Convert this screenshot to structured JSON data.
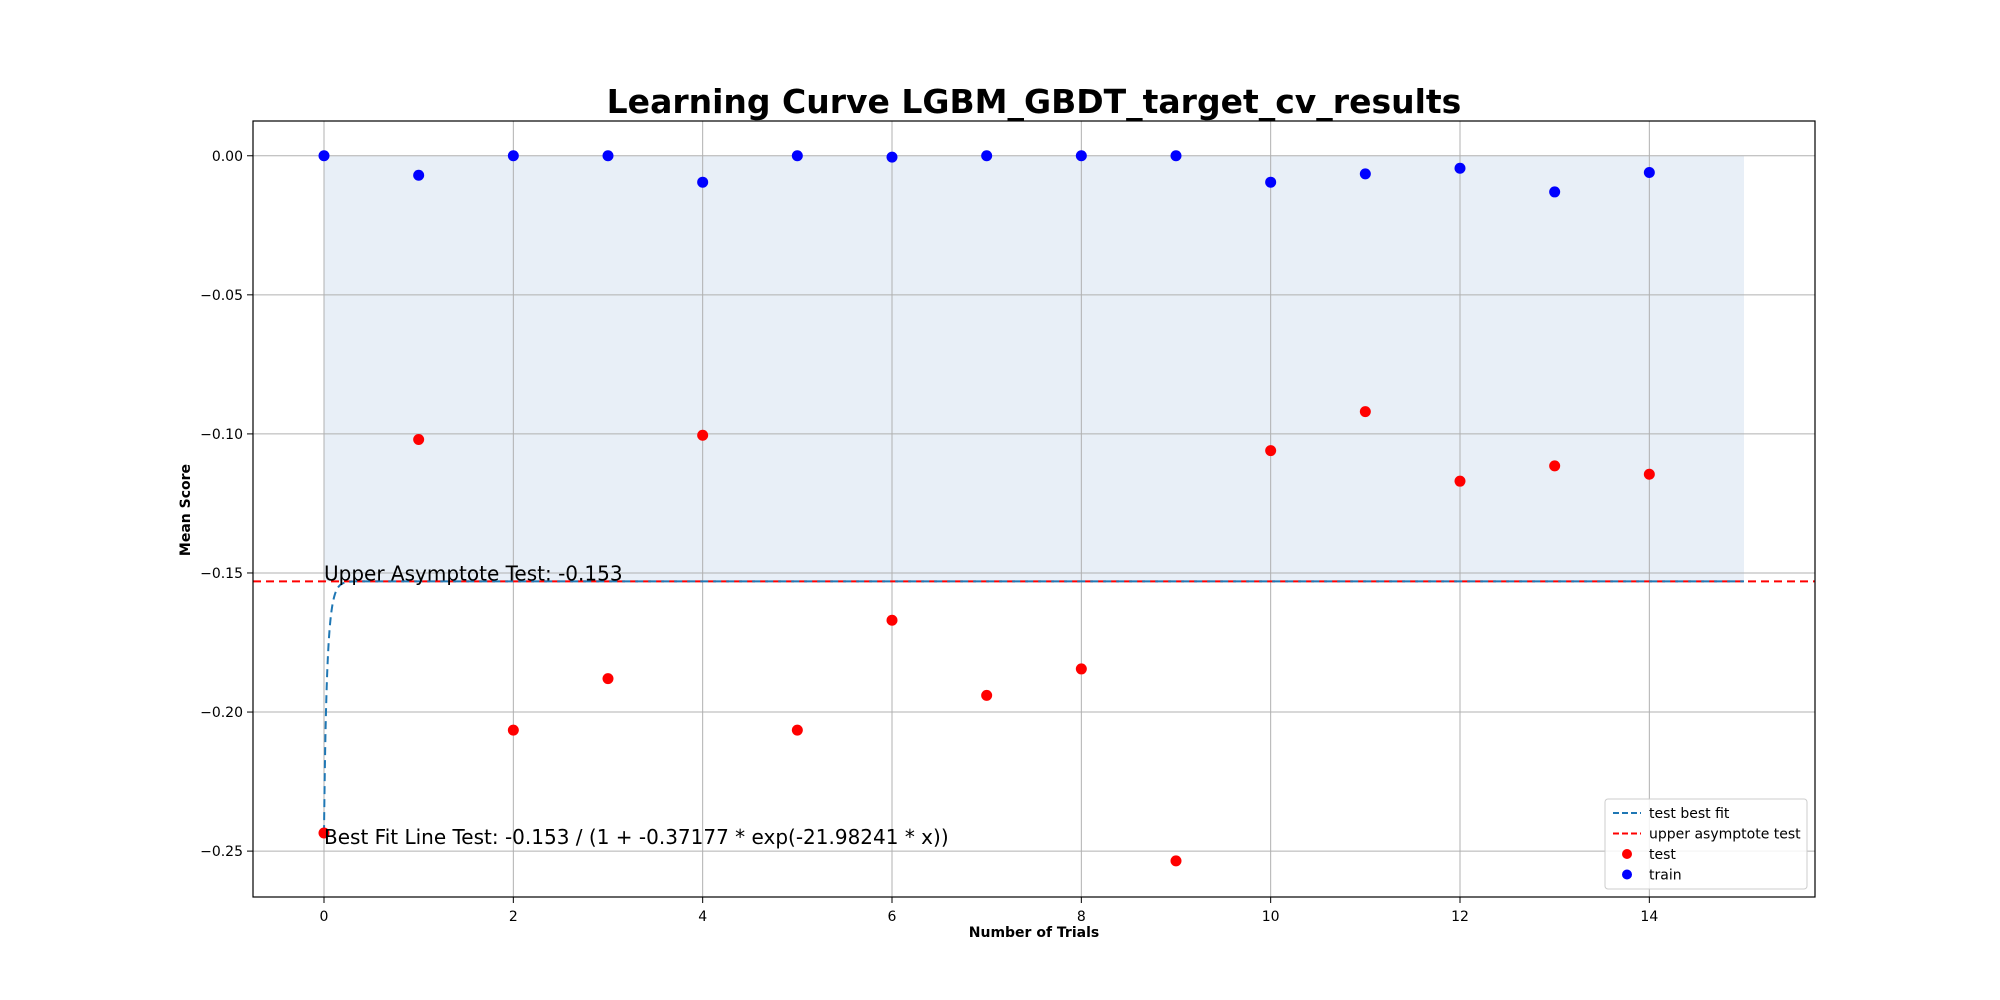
{
  "chart_data": {
    "type": "scatter",
    "title": "Learning Curve LGBM_GBDT_target_cv_results",
    "xlabel": "Number of Trials",
    "ylabel": "Mean Score",
    "xlim": [
      -0.75,
      15.75
    ],
    "ylim": [
      -0.2665,
      0.0125
    ],
    "xticks": [
      0,
      2,
      4,
      6,
      8,
      10,
      12,
      14
    ],
    "xtick_labels": [
      "0",
      "2",
      "4",
      "6",
      "8",
      "10",
      "12",
      "14"
    ],
    "yticks": [
      0.0,
      -0.05,
      -0.1,
      -0.15,
      -0.2,
      -0.25
    ],
    "ytick_labels": [
      "0.00",
      "−0.05",
      "−0.10",
      "−0.15",
      "−0.20",
      "−0.25"
    ],
    "grid": true,
    "legend_position": "bottom-right",
    "colors": {
      "test": "#ff0000",
      "train": "#0000ff",
      "best_fit": "#1f77b4",
      "asymptote": "#ff0000",
      "band": "#e8eff7"
    },
    "band": {
      "x": [
        0,
        15
      ],
      "y": [
        -0.153,
        0.0
      ]
    },
    "series": [
      {
        "name": "train",
        "kind": "scatter",
        "x": [
          0,
          1,
          2,
          3,
          4,
          5,
          6,
          7,
          8,
          9,
          10,
          11,
          12,
          13,
          14
        ],
        "y": [
          0.0,
          -0.007,
          0.0,
          0.0,
          -0.0095,
          0.0,
          -0.0005,
          0.0,
          0.0,
          0.0,
          -0.0095,
          -0.0065,
          -0.0045,
          -0.013,
          -0.006
        ]
      },
      {
        "name": "test",
        "kind": "scatter",
        "x": [
          0,
          1,
          2,
          3,
          4,
          5,
          6,
          7,
          8,
          9,
          10,
          11,
          12,
          13,
          14
        ],
        "y": [
          -0.2435,
          -0.102,
          -0.2065,
          -0.188,
          -0.1005,
          -0.2065,
          -0.167,
          -0.194,
          -0.1845,
          -0.2535,
          -0.106,
          -0.092,
          -0.117,
          -0.1115,
          -0.1145
        ]
      },
      {
        "name": "test best fit",
        "kind": "curve",
        "a": -0.153,
        "b": -0.37177,
        "c": -21.98241,
        "x_range": [
          0,
          15
        ]
      },
      {
        "name": "upper asymptote test",
        "kind": "hline",
        "y": -0.153
      }
    ],
    "legend": [
      "test best fit",
      "upper asymptote test",
      "test",
      "train"
    ],
    "annotations": {
      "asymptote": "Upper Asymptote Test: -0.153",
      "best_fit": "Best Fit Line Test: -0.153 / (1 + -0.37177 * exp(-21.98241 * x))"
    }
  }
}
